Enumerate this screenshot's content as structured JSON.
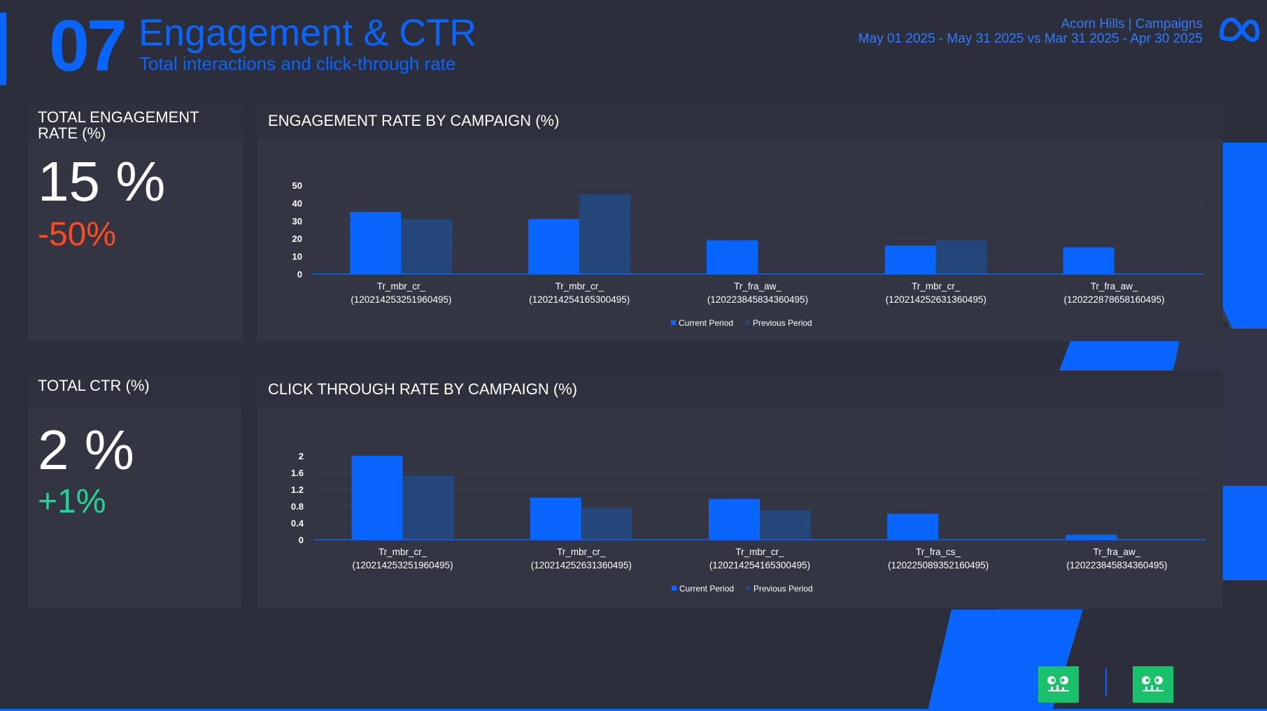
{
  "header": {
    "section_number": "07",
    "title": "Engagement & CTR",
    "subtitle": "Total interactions and click-through rate",
    "account": "Acorn Hills | Campaigns",
    "date_range": "May 01 2025 - May 31 2025 vs Mar 31 2025 - Apr 30 2025",
    "logo_icon": "meta-infinity-icon"
  },
  "colors": {
    "accent": "#0866ff",
    "current_period": "#0866ff",
    "previous_period": "#24467a",
    "negative": "#ff4b1f",
    "positive": "#20d49a",
    "background": "#2d2e3b",
    "card": "#343543"
  },
  "kpis": {
    "engagement": {
      "title": "TOTAL ENGAGEMENT RATE (%)",
      "value": "15 %",
      "delta": "-50%",
      "delta_color": "#ff4b1f"
    },
    "ctr": {
      "title": "TOTAL CTR (%)",
      "value": "2 %",
      "delta": "+1%",
      "delta_color": "#20d49a"
    }
  },
  "footer": {
    "badge_icon": "robot-face-icon"
  },
  "chart_data": [
    {
      "type": "bar",
      "title": "ENGAGEMENT RATE BY CAMPAIGN (%)",
      "categories": [
        [
          "Tr_mbr_cr_",
          "(120214253251960495)"
        ],
        [
          "Tr_mbr_cr_",
          "(120214254165300495)"
        ],
        [
          "Tr_fra_aw_",
          "(120223845834360495)"
        ],
        [
          "Tr_mbr_cr_",
          "(120214252631360495)"
        ],
        [
          "Tr_fra_aw_",
          "(120222878658160495)"
        ]
      ],
      "series": [
        {
          "name": "Current Period",
          "values": [
            35,
            31,
            19,
            16,
            15
          ]
        },
        {
          "name": "Previous Period",
          "values": [
            31,
            45,
            0,
            19,
            0
          ]
        }
      ],
      "yticks": [
        "0",
        "10",
        "20",
        "30",
        "40",
        "50"
      ],
      "ylim": [
        0,
        50
      ],
      "grid": true,
      "legend": "bottom"
    },
    {
      "type": "bar",
      "title": "CLICK THROUGH RATE BY CAMPAIGN (%)",
      "categories": [
        [
          "Tr_mbr_cr_",
          "(120214253251960495)"
        ],
        [
          "Tr_mbr_cr_",
          "(120214252631360495)"
        ],
        [
          "Tr_mbr_cr_",
          "(120214254165300495)"
        ],
        [
          "Tr_fra_cs_",
          "(120225089352160495)"
        ],
        [
          "Tr_fra_aw_",
          "(120223845834360495)"
        ]
      ],
      "series": [
        {
          "name": "Current Period",
          "values": [
            2.0,
            1.0,
            0.97,
            0.62,
            0.12
          ]
        },
        {
          "name": "Previous Period",
          "values": [
            1.53,
            0.76,
            0.71,
            0,
            0
          ]
        }
      ],
      "yticks": [
        "0",
        "0.4",
        "0.8",
        "1.2",
        "1.6",
        "2"
      ],
      "ylim": [
        0,
        2
      ],
      "grid": true,
      "legend": "bottom"
    }
  ]
}
